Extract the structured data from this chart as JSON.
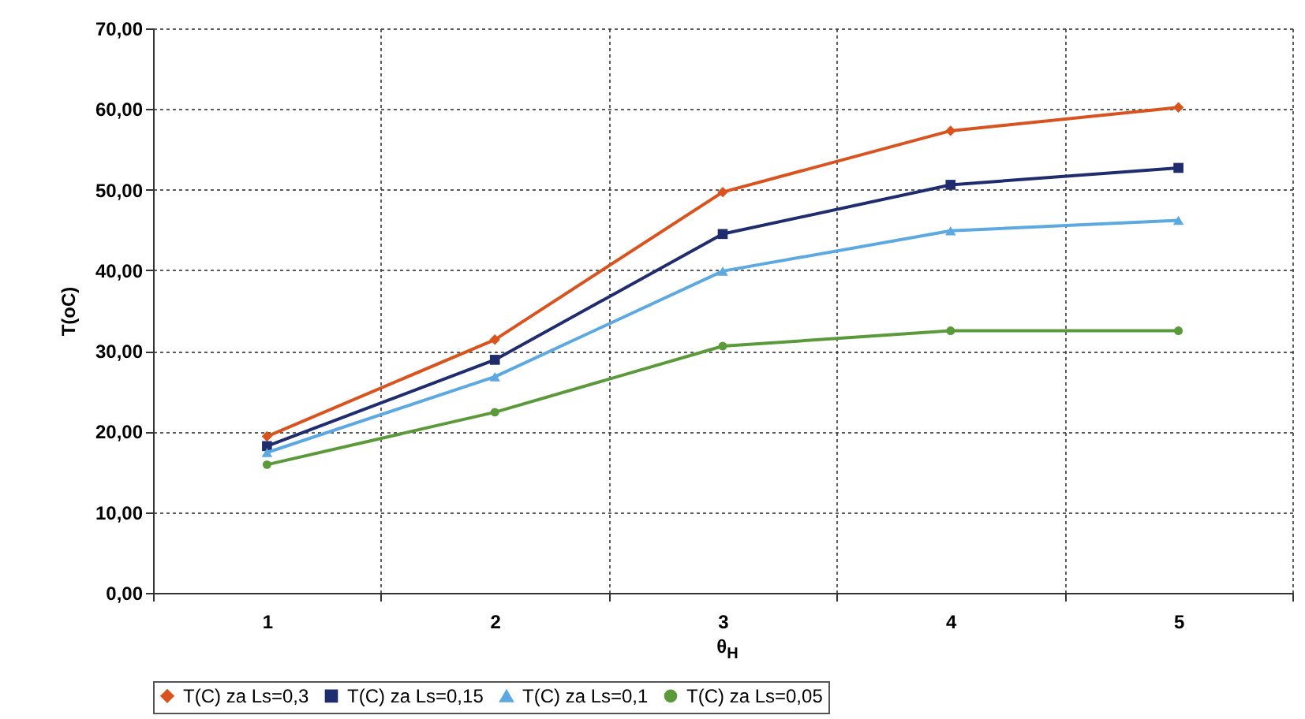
{
  "chart_data": {
    "type": "line",
    "xlabel": "θ$_{H}$",
    "ylabel": "T(oC)",
    "categories": [
      "1",
      "2",
      "3",
      "4",
      "5"
    ],
    "series": [
      {
        "name": "T(C) za Ls=0,3",
        "color": "#d9531e",
        "marker": "diamond",
        "values": [
          19.4,
          31.4,
          49.7,
          57.3,
          60.2
        ]
      },
      {
        "name": "T(C) za Ls=0,15",
        "color": "#1f2d6e",
        "marker": "square",
        "values": [
          18.2,
          28.9,
          44.5,
          50.6,
          52.7
        ]
      },
      {
        "name": "T(C) za Ls=0,1",
        "color": "#5ca8e0",
        "marker": "triangle",
        "values": [
          17.4,
          26.8,
          39.9,
          44.9,
          46.2
        ]
      },
      {
        "name": "T(C) za Ls=0,05",
        "color": "#5a9a3a",
        "marker": "circle",
        "values": [
          15.9,
          22.4,
          30.6,
          32.5,
          32.5
        ]
      }
    ],
    "ylim": [
      0,
      70
    ],
    "yticks": [
      {
        "value": 0,
        "label": "0,00"
      },
      {
        "value": 10,
        "label": "10,00"
      },
      {
        "value": 20,
        "label": "20,00"
      },
      {
        "value": 30,
        "label": "30,00"
      },
      {
        "value": 40,
        "label": "40,00"
      },
      {
        "value": 50,
        "label": "50,00"
      },
      {
        "value": 60,
        "label": "60,00"
      },
      {
        "value": 70,
        "label": "70,00"
      }
    ],
    "grid": true,
    "legend": "bottom"
  }
}
